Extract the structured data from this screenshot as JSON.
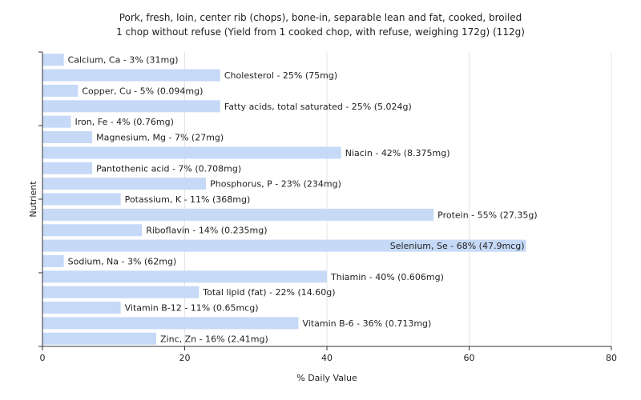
{
  "chart_data": {
    "type": "bar",
    "orientation": "horizontal",
    "title": "Pork, fresh, loin, center rib (chops), bone-in, separable lean and fat, cooked, broiled",
    "subtitle": "1 chop without refuse (Yield from 1 cooked chop, with refuse, weighing 172g) (112g)",
    "xlabel": "% Daily Value",
    "ylabel": "Nutrient",
    "xlim": [
      0,
      80
    ],
    "xticks": [
      "0",
      "20",
      "40",
      "60",
      "80"
    ],
    "grid": "vertical",
    "bar_color": "#c6d9f7",
    "categories": [
      "Calcium, Ca",
      "Cholesterol",
      "Copper, Cu",
      "Fatty acids, total saturated",
      "Iron, Fe",
      "Magnesium, Mg",
      "Niacin",
      "Pantothenic acid",
      "Phosphorus, P",
      "Potassium, K",
      "Protein",
      "Riboflavin",
      "Selenium, Se",
      "Sodium, Na",
      "Thiamin",
      "Total lipid (fat)",
      "Vitamin B-12",
      "Vitamin B-6",
      "Zinc, Zn"
    ],
    "values": [
      3,
      25,
      5,
      25,
      4,
      7,
      42,
      7,
      23,
      11,
      55,
      14,
      68,
      3,
      40,
      22,
      11,
      36,
      16
    ],
    "labels": [
      "Calcium, Ca - 3% (31mg)",
      "Cholesterol - 25% (75mg)",
      "Copper, Cu - 5% (0.094mg)",
      "Fatty acids, total saturated - 25% (5.024g)",
      "Iron, Fe - 4% (0.76mg)",
      "Magnesium, Mg - 7% (27mg)",
      "Niacin - 42% (8.375mg)",
      "Pantothenic acid - 7% (0.708mg)",
      "Phosphorus, P - 23% (234mg)",
      "Potassium, K - 11% (368mg)",
      "Protein - 55% (27.35g)",
      "Riboflavin - 14% (0.235mg)",
      "Selenium, Se - 68% (47.9mcg)",
      "Sodium, Na - 3% (62mg)",
      "Thiamin - 40% (0.606mg)",
      "Total lipid (fat) - 22% (14.60g)",
      "Vitamin B-12 - 11% (0.65mcg)",
      "Vitamin B-6 - 36% (0.713mg)",
      "Zinc, Zn - 16% (2.41mg)"
    ]
  }
}
